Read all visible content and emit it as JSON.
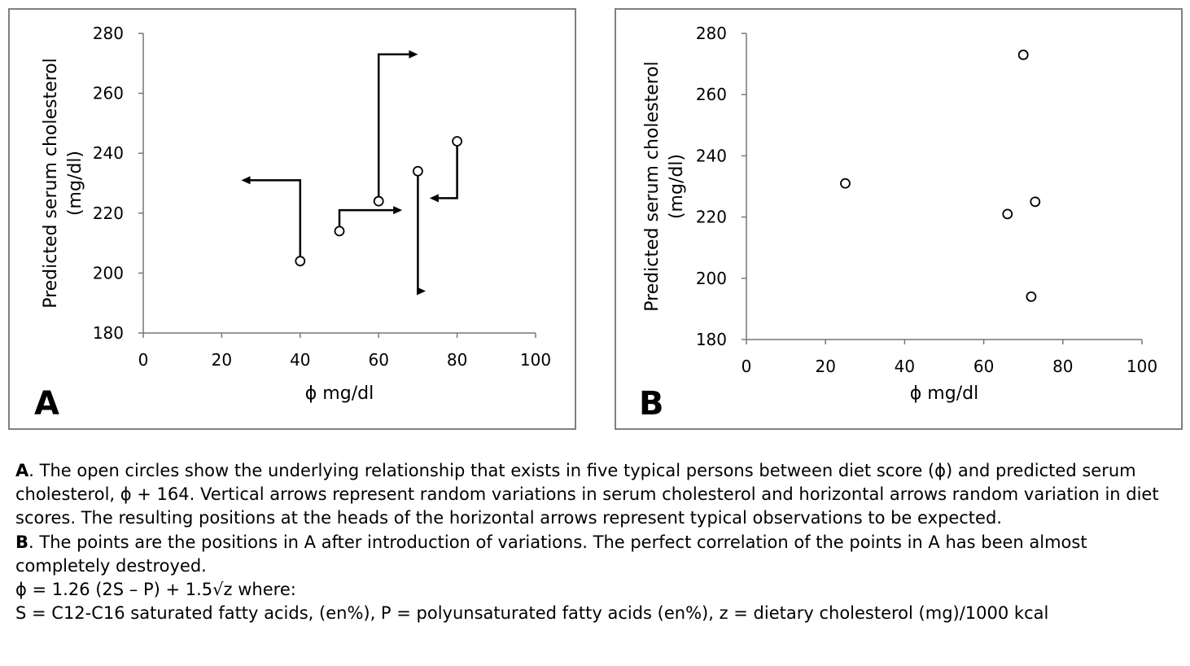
{
  "chart_data": [
    {
      "type": "scatter",
      "panel_label": "A",
      "xlabel": "ϕ mg/dl",
      "ylabel": "Predicted serum cholesterol\n(mg/dl)",
      "xlim": [
        0,
        100
      ],
      "ylim": [
        180,
        280
      ],
      "x_ticks": [
        0,
        20,
        40,
        60,
        80,
        100
      ],
      "y_ticks": [
        180,
        200,
        220,
        240,
        260,
        280
      ],
      "grid": false,
      "points": [
        {
          "x": 40,
          "y": 204
        },
        {
          "x": 50,
          "y": 214
        },
        {
          "x": 60,
          "y": 224
        },
        {
          "x": 70,
          "y": 234
        },
        {
          "x": 80,
          "y": 244
        }
      ],
      "arrows": [
        {
          "from": [
            40,
            204
          ],
          "vertical_to": 231,
          "horizontal_to": 25
        },
        {
          "from": [
            50,
            214
          ],
          "vertical_to": 221,
          "horizontal_to": 66
        },
        {
          "from": [
            60,
            224
          ],
          "vertical_to": 273,
          "horizontal_to": 70
        },
        {
          "from": [
            70,
            234
          ],
          "vertical_to": 194,
          "horizontal_to": 72
        },
        {
          "from": [
            80,
            244
          ],
          "vertical_to": 225,
          "horizontal_to": 73
        }
      ]
    },
    {
      "type": "scatter",
      "panel_label": "B",
      "xlabel": "ϕ mg/dl",
      "ylabel": "Predicted serum cholesterol\n(mg/dl)",
      "xlim": [
        0,
        100
      ],
      "ylim": [
        180,
        280
      ],
      "x_ticks": [
        0,
        20,
        40,
        60,
        80,
        100
      ],
      "y_ticks": [
        180,
        200,
        220,
        240,
        260,
        280
      ],
      "grid": false,
      "points": [
        {
          "x": 25,
          "y": 231
        },
        {
          "x": 66,
          "y": 221
        },
        {
          "x": 70,
          "y": 273
        },
        {
          "x": 72,
          "y": 194
        },
        {
          "x": 73,
          "y": 225
        }
      ]
    }
  ],
  "caption": {
    "a_label": "A",
    "a_text": ". The open circles show the underlying relationship that exists in five typical persons between diet score (ϕ) and predicted serum cholesterol, ϕ + 164. Vertical arrows represent random variations in serum cholesterol and horizontal arrows random variation in diet scores. The resulting positions at the heads of the horizontal arrows represent typical observations to be expected.",
    "b_label": "B",
    "b_text": ". The points are the positions in A after introduction of variations. The perfect correlation of the points in A has been almost completely destroyed.",
    "formula": "ϕ = 1.26 (2S – P) + 1.5√z where:",
    "definitions": "S = C12-C16 saturated fatty acids, (en%), P = polyunsaturated fatty acids (en%), z = dietary cholesterol (mg)/1000 kcal"
  }
}
